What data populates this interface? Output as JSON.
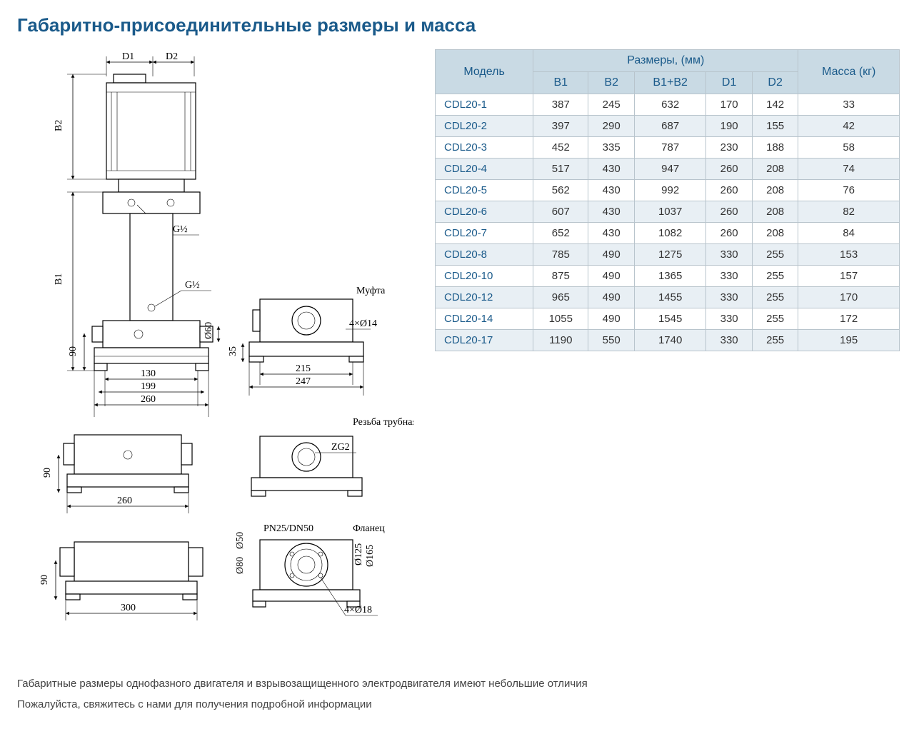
{
  "title": "Габаритно-присоединительные размеры и масса",
  "colors": {
    "heading": "#1a5a8a",
    "table_header_bg": "#c9dae4",
    "table_row_alt_bg": "#e8eff4",
    "table_border": "#b8c4cc",
    "table_text_model": "#1a5a8a",
    "page_bg": "#ffffff"
  },
  "table": {
    "header_model": "Модель",
    "header_dimensions": "Размеры, (мм)",
    "header_mass": "Масса (кг)",
    "subheaders": [
      "B1",
      "B2",
      "B1+B2",
      "D1",
      "D2"
    ],
    "rows": [
      {
        "model": "CDL20-1",
        "B1": "387",
        "B2": "245",
        "sum": "632",
        "D1": "170",
        "D2": "142",
        "mass": "33"
      },
      {
        "model": "CDL20-2",
        "B1": "397",
        "B2": "290",
        "sum": "687",
        "D1": "190",
        "D2": "155",
        "mass": "42"
      },
      {
        "model": "CDL20-3",
        "B1": "452",
        "B2": "335",
        "sum": "787",
        "D1": "230",
        "D2": "188",
        "mass": "58"
      },
      {
        "model": "CDL20-4",
        "B1": "517",
        "B2": "430",
        "sum": "947",
        "D1": "260",
        "D2": "208",
        "mass": "74"
      },
      {
        "model": "CDL20-5",
        "B1": "562",
        "B2": "430",
        "sum": "992",
        "D1": "260",
        "D2": "208",
        "mass": "76"
      },
      {
        "model": "CDL20-6",
        "B1": "607",
        "B2": "430",
        "sum": "1037",
        "D1": "260",
        "D2": "208",
        "mass": "82"
      },
      {
        "model": "CDL20-7",
        "B1": "652",
        "B2": "430",
        "sum": "1082",
        "D1": "260",
        "D2": "208",
        "mass": "84"
      },
      {
        "model": "CDL20-8",
        "B1": "785",
        "B2": "490",
        "sum": "1275",
        "D1": "330",
        "D2": "255",
        "mass": "153"
      },
      {
        "model": "CDL20-10",
        "B1": "875",
        "B2": "490",
        "sum": "1365",
        "D1": "330",
        "D2": "255",
        "mass": "157"
      },
      {
        "model": "CDL20-12",
        "B1": "965",
        "B2": "490",
        "sum": "1455",
        "D1": "330",
        "D2": "255",
        "mass": "170"
      },
      {
        "model": "CDL20-14",
        "B1": "1055",
        "B2": "490",
        "sum": "1545",
        "D1": "330",
        "D2": "255",
        "mass": "172"
      },
      {
        "model": "CDL20-17",
        "B1": "1190",
        "B2": "550",
        "sum": "1740",
        "D1": "330",
        "D2": "255",
        "mass": "195"
      }
    ]
  },
  "diagram_labels": {
    "D1": "D1",
    "D2": "D2",
    "B1": "B1",
    "B2": "B2",
    "G12": "G½",
    "G12b": "G½",
    "d60": "Ø60",
    "d90": "90",
    "d130": "130",
    "d199": "199",
    "d260": "260",
    "d35": "35",
    "d215": "215",
    "d247": "247",
    "h4x14": "4×Ø14",
    "coupling": "Муфта",
    "d90b": "90",
    "d260b": "260",
    "thread": "Резьба трубная",
    "ZG2": "ZG2",
    "d90c": "90",
    "d300": "300",
    "PN": "PN25/DN50",
    "flange": "Фланец",
    "d50": "Ø50",
    "d80": "Ø80",
    "d125": "Ø125",
    "d165": "Ø165",
    "h4x18": "4×Ø18"
  },
  "footer": {
    "line1": "Габаритные размеры однофазного двигателя и взрывозащищенного электродвигателя имеют небольшие отличия",
    "line2": "Пожалуйста, свяжитесь с нами для получения подробной информации"
  }
}
